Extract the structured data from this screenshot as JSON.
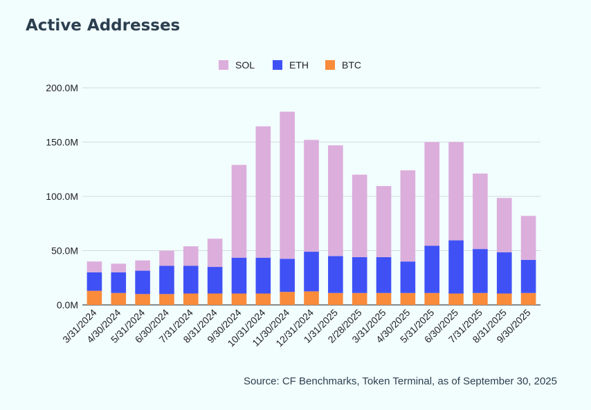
{
  "title": "Active Addresses",
  "source": "Source: CF Benchmarks, Token Terminal, as of September 30, 2025",
  "colors": {
    "SOL": "#dcaedc",
    "ETH": "#3f51f5",
    "BTC": "#f98b3a",
    "grid": "#d4d9dc",
    "axis": "#444444"
  },
  "chart_data": {
    "type": "bar",
    "stacked": true,
    "title": "Active Addresses",
    "xlabel": "",
    "ylabel": "",
    "ylim": [
      0,
      200
    ],
    "y_unit": "M",
    "y_ticks": [
      "0.0M",
      "50.0M",
      "100.0M",
      "150.0M",
      "200.0M"
    ],
    "legend_position": "top",
    "grid": true,
    "categories": [
      "3/31/2024",
      "4/30/2024",
      "5/31/2024",
      "6/30/2024",
      "7/31/2024",
      "8/31/2024",
      "9/30/2024",
      "10/31/2024",
      "11/30/2024",
      "12/31/2024",
      "1/31/2025",
      "2/28/2025",
      "3/31/2025",
      "4/30/2025",
      "5/31/2025",
      "6/30/2025",
      "7/31/2025",
      "8/31/2025",
      "9/30/2025"
    ],
    "series": [
      {
        "name": "BTC",
        "values": [
          13,
          11,
          10,
          10,
          10.5,
          10.5,
          10.5,
          10.5,
          12,
          12.5,
          11,
          11,
          11,
          11,
          11,
          10.5,
          11,
          10.5,
          11
        ]
      },
      {
        "name": "ETH",
        "values": [
          17,
          19,
          21.5,
          26,
          25.5,
          24.5,
          33,
          33,
          30.5,
          36.5,
          34,
          33,
          33,
          29,
          43.5,
          49,
          40.5,
          38,
          30.5
        ]
      },
      {
        "name": "SOL",
        "values": [
          10,
          8,
          9.5,
          14,
          18,
          26,
          85.5,
          121,
          135.5,
          103,
          102,
          76,
          65.5,
          84,
          95.5,
          90.5,
          69.5,
          50,
          40.5
        ]
      }
    ]
  }
}
